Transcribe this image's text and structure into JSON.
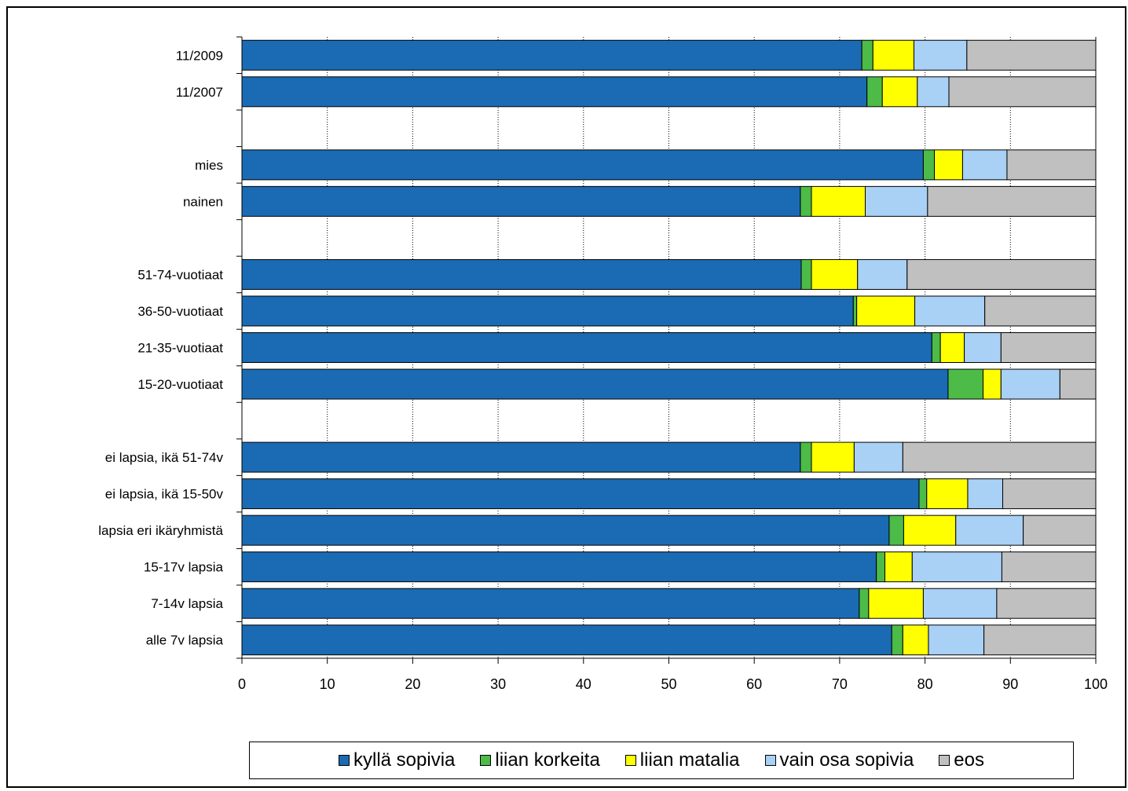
{
  "chart_data": {
    "type": "bar",
    "orientation": "horizontal",
    "stacked": true,
    "categories": [
      "11/2009",
      "11/2007",
      "",
      "mies",
      "nainen",
      "",
      "51-74-vuotiaat",
      "36-50-vuotiaat",
      "21-35-vuotiaat",
      "15-20-vuotiaat",
      "",
      "ei lapsia, ikä 51-74v",
      "ei lapsia, ikä 15-50v",
      "lapsia eri ikäryhmistä",
      "15-17v lapsia",
      "7-14v lapsia",
      "alle 7v lapsia"
    ],
    "series": [
      {
        "name": "kyllä sopivia",
        "color": "#1a6bb3",
        "values": [
          72.6,
          73.2,
          null,
          79.8,
          65.4,
          null,
          65.5,
          71.6,
          80.8,
          82.7,
          null,
          65.4,
          79.3,
          75.8,
          74.3,
          72.3,
          76.1
        ]
      },
      {
        "name": "liian korkeita",
        "color": "#4cbb48",
        "values": [
          1.3,
          1.8,
          null,
          1.3,
          1.3,
          null,
          1.2,
          0.4,
          1.0,
          4.1,
          null,
          1.3,
          0.9,
          1.7,
          1.0,
          1.1,
          1.3
        ]
      },
      {
        "name": "liian matalia",
        "color": "#ffff00",
        "values": [
          4.8,
          4.1,
          null,
          3.3,
          6.3,
          null,
          5.4,
          6.8,
          2.8,
          2.1,
          null,
          5.0,
          4.8,
          6.1,
          3.2,
          6.4,
          3.0
        ]
      },
      {
        "name": "vain osa sopivia",
        "color": "#a9d0f5",
        "values": [
          6.2,
          3.7,
          null,
          5.2,
          7.3,
          null,
          5.8,
          8.2,
          4.3,
          6.9,
          null,
          5.7,
          4.1,
          7.9,
          10.5,
          8.6,
          6.5
        ]
      },
      {
        "name": "eos",
        "color": "#c0c0c0",
        "values": [
          15.1,
          17.2,
          null,
          10.4,
          19.7,
          null,
          22.1,
          13.0,
          11.1,
          4.2,
          null,
          22.6,
          10.9,
          8.5,
          11.0,
          11.6,
          13.1
        ]
      }
    ],
    "xlim": [
      0,
      100
    ],
    "xticks": [
      0,
      10,
      20,
      30,
      40,
      50,
      60,
      70,
      80,
      90,
      100
    ],
    "grid": "vertical dotted",
    "legend_position": "bottom"
  }
}
